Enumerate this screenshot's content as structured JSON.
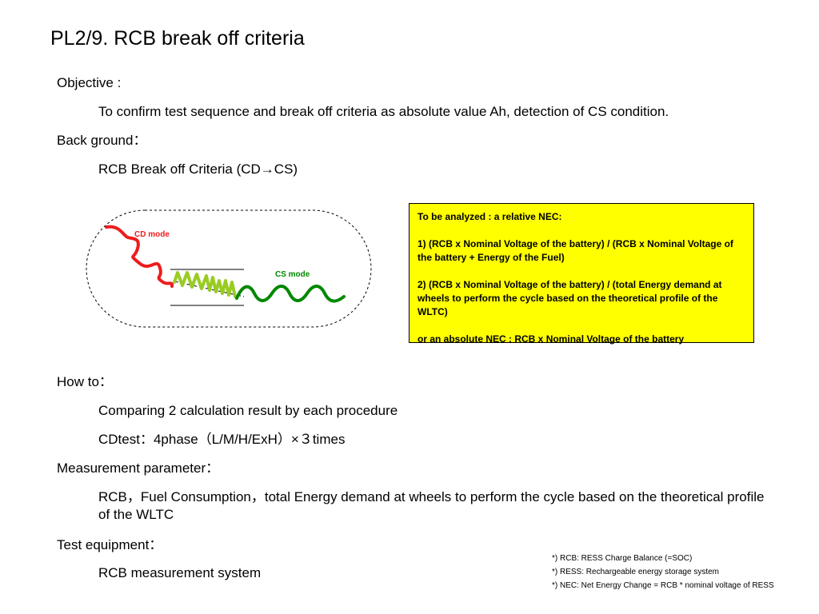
{
  "title": "PL2/9. RCB break off criteria",
  "objective": {
    "heading": "Objective :",
    "text": "To confirm test sequence and break off criteria as absolute value Ah, detection of CS condition."
  },
  "background": {
    "heading": "Back ground：",
    "text": "RCB Break off Criteria (CD→CS)"
  },
  "diagram": {
    "cd_label": "CD mode",
    "cs_label": "CS mode",
    "colors": {
      "cd": "#ee1c1c",
      "transition": "#99cc22",
      "cs": "#008800"
    }
  },
  "callout": {
    "heading": "To be analyzed : a relative NEC:",
    "item1": "1) (RCB x Nominal Voltage of the battery) / (RCB x Nominal Voltage of the battery + Energy of the Fuel)",
    "item2": "2) (RCB x Nominal Voltage of the battery) / (total Energy demand at wheels to perform the cycle based on the theoretical profile of the WLTC)",
    "item3": "or an absolute NEC : RCB x Nominal Voltage of the battery",
    "background_color": "#ffff00"
  },
  "howto": {
    "heading": "How to：",
    "line1": "Comparing 2 calculation result by each procedure",
    "line2": "CDtest：4phase（L/M/H/ExH）×３times"
  },
  "measurement": {
    "heading": "Measurement parameter：",
    "text": "RCB，Fuel Consumption，total Energy demand at wheels to perform the cycle based on the theoretical profile of the WLTC"
  },
  "equipment": {
    "heading": "Test equipment：",
    "text": "RCB measurement system"
  },
  "footnotes": [
    "*) RCB: RESS Charge Balance (=SOC)",
    "*) RESS:  Rechargeable energy storage system",
    "*) NEC: Net Energy Change = RCB * nominal voltage of RESS"
  ]
}
